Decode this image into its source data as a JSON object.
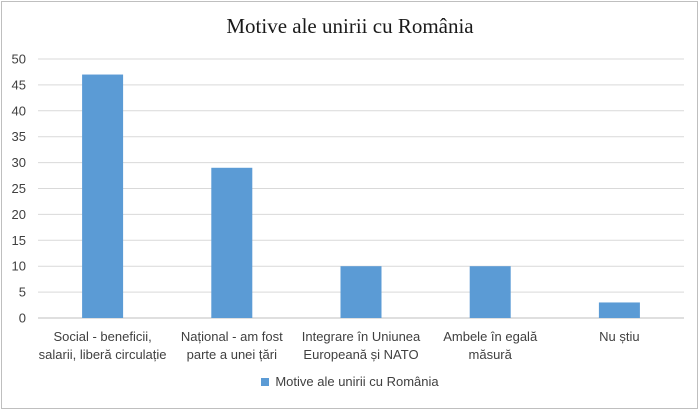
{
  "chart_data": {
    "type": "bar",
    "title": "Motive ale unirii cu România",
    "categories": [
      [
        "Social - beneficii,",
        "salarii, liberă circulație"
      ],
      [
        "Național - am fost",
        "parte a unei țări"
      ],
      [
        "Integrare în Uniunea",
        "Europeană și NATO"
      ],
      [
        "Ambele în egală",
        "măsură"
      ],
      [
        "Nu știu"
      ]
    ],
    "series": [
      {
        "name": "Motive ale unirii cu România",
        "values": [
          47,
          29,
          10,
          10,
          3
        ],
        "color": "#5b9bd5"
      }
    ],
    "ylim": [
      0,
      50
    ],
    "yticks": [
      0,
      5,
      10,
      15,
      20,
      25,
      30,
      35,
      40,
      45,
      50
    ],
    "xlabel": "",
    "ylabel": "",
    "grid": true,
    "legend_position": "bottom"
  }
}
